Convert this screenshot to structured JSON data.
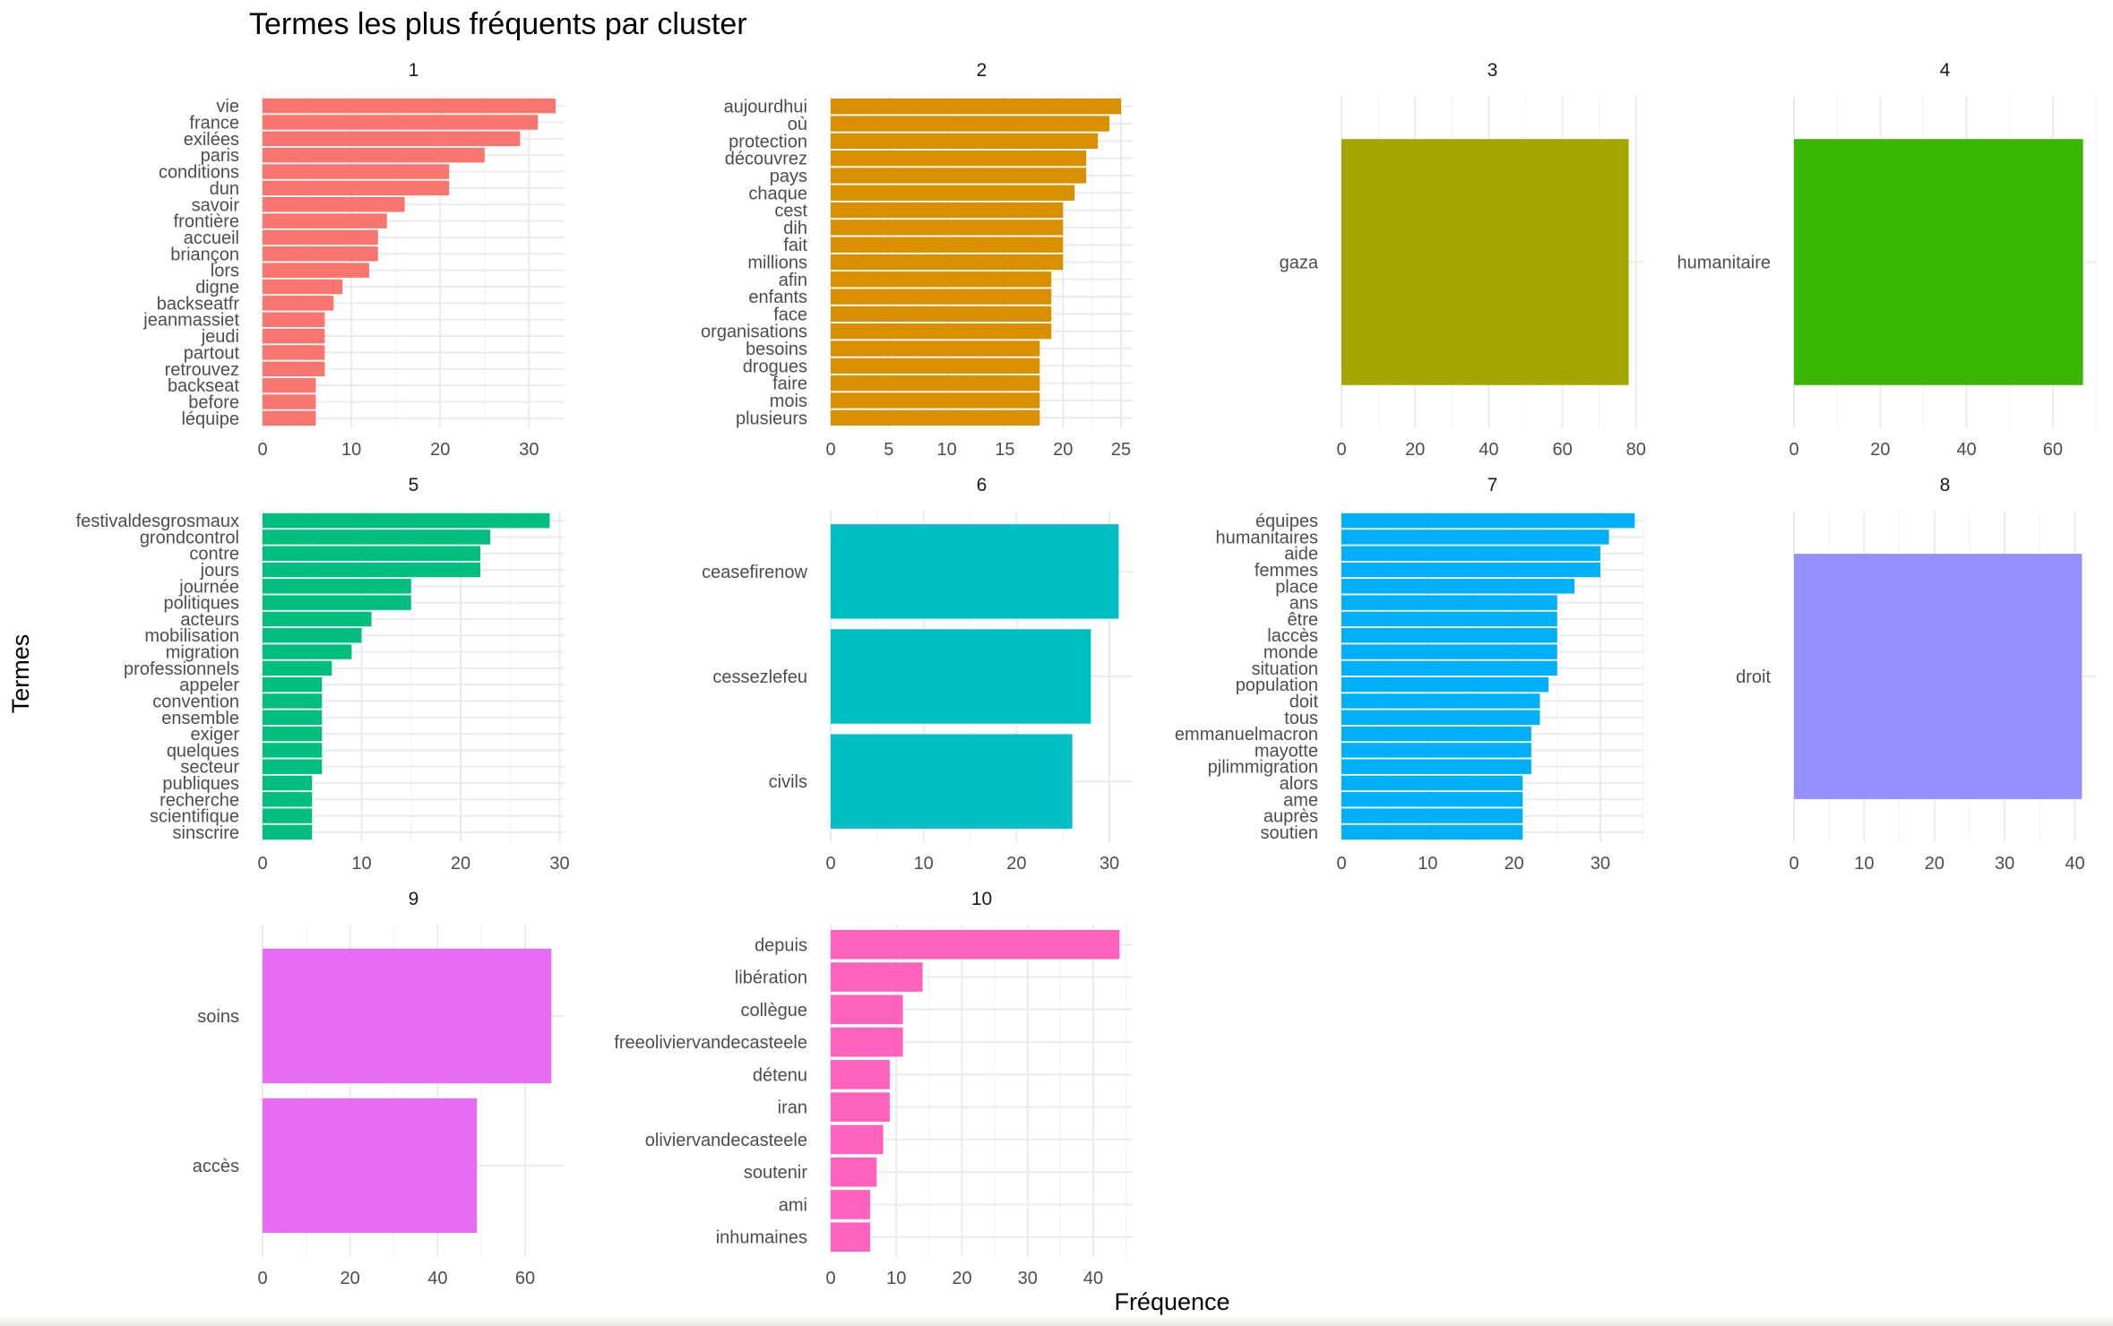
{
  "title": "Termes les plus fréquents par cluster",
  "xlabel": "Fréquence",
  "ylabel": "Termes",
  "chart_data": {
    "type": "bar",
    "orientation": "horizontal",
    "facets": [
      {
        "name": "1",
        "color": "#F8766D",
        "xlim": [
          0,
          34
        ],
        "xticks": [
          0,
          10,
          20,
          30
        ],
        "categories": [
          "léquipe",
          "before",
          "backseat",
          "retrouvez",
          "partout",
          "jeudi",
          "jeanmassiet",
          "backseatfr",
          "digne",
          "lors",
          "briançon",
          "accueil",
          "frontière",
          "savoir",
          "dun",
          "conditions",
          "paris",
          "exilées",
          "france",
          "vie"
        ],
        "values": [
          6,
          6,
          6,
          7,
          7,
          7,
          7,
          8,
          9,
          12,
          13,
          13,
          14,
          16,
          21,
          21,
          25,
          29,
          31,
          33
        ]
      },
      {
        "name": "2",
        "color": "#D89000",
        "xlim": [
          0,
          26
        ],
        "xticks": [
          0,
          5,
          10,
          15,
          20,
          25
        ],
        "categories": [
          "plusieurs",
          "mois",
          "faire",
          "drogues",
          "besoins",
          "organisations",
          "face",
          "enfants",
          "afin",
          "millions",
          "fait",
          "dih",
          "cest",
          "chaque",
          "pays",
          "découvrez",
          "protection",
          "où",
          "aujourdhui"
        ],
        "values": [
          18,
          18,
          18,
          18,
          18,
          19,
          19,
          19,
          19,
          20,
          20,
          20,
          20,
          21,
          22,
          22,
          23,
          24,
          25
        ]
      },
      {
        "name": "3",
        "color": "#A3A500",
        "xlim": [
          0,
          82
        ],
        "xticks": [
          0,
          20,
          40,
          60,
          80
        ],
        "categories": [
          "gaza"
        ],
        "values": [
          78
        ]
      },
      {
        "name": "4",
        "color": "#39B600",
        "xlim": [
          0,
          70
        ],
        "xticks": [
          0,
          20,
          40,
          60
        ],
        "categories": [
          "humanitaire"
        ],
        "values": [
          67
        ]
      },
      {
        "name": "5",
        "color": "#00BF7D",
        "xlim": [
          0,
          30.5
        ],
        "xticks": [
          0,
          10,
          20,
          30
        ],
        "categories": [
          "sinscrire",
          "scientifique",
          "recherche",
          "publiques",
          "secteur",
          "quelques",
          "exiger",
          "ensemble",
          "convention",
          "appeler",
          "professionnels",
          "migration",
          "mobilisation",
          "acteurs",
          "politiques",
          "journée",
          "jours",
          "contre",
          "grondcontrol",
          "festivaldesgrosmaux"
        ],
        "values": [
          5,
          5,
          5,
          5,
          6,
          6,
          6,
          6,
          6,
          6,
          7,
          9,
          10,
          11,
          15,
          15,
          22,
          22,
          23,
          29
        ]
      },
      {
        "name": "6",
        "color": "#00BFC4",
        "xlim": [
          0,
          32.5
        ],
        "xticks": [
          0,
          10,
          20,
          30
        ],
        "categories": [
          "civils",
          "cessezlefeu",
          "ceasefirenow"
        ],
        "values": [
          26,
          28,
          31
        ]
      },
      {
        "name": "7",
        "color": "#00B0F6",
        "xlim": [
          0,
          35
        ],
        "xticks": [
          0,
          10,
          20,
          30
        ],
        "categories": [
          "soutien",
          "auprès",
          "ame",
          "alors",
          "pjlimmigration",
          "mayotte",
          "emmanuelmacron",
          "tous",
          "doit",
          "population",
          "situation",
          "monde",
          "laccès",
          "être",
          "ans",
          "place",
          "femmes",
          "aide",
          "humanitaires",
          "équipes"
        ],
        "values": [
          21,
          21,
          21,
          21,
          22,
          22,
          22,
          23,
          23,
          24,
          25,
          25,
          25,
          25,
          25,
          27,
          30,
          30,
          31,
          34
        ]
      },
      {
        "name": "8",
        "color": "#9590FF",
        "xlim": [
          0,
          43
        ],
        "xticks": [
          0,
          10,
          20,
          30,
          40
        ],
        "categories": [
          "droit"
        ],
        "values": [
          41
        ]
      },
      {
        "name": "9",
        "color": "#E76BF3",
        "xlim": [
          0,
          69
        ],
        "xticks": [
          0,
          20,
          40,
          60
        ],
        "categories": [
          "accès",
          "soins"
        ],
        "values": [
          49,
          66
        ]
      },
      {
        "name": "10",
        "color": "#FF62BC",
        "xlim": [
          0,
          46
        ],
        "xticks": [
          0,
          10,
          20,
          30,
          40
        ],
        "categories": [
          "inhumaines",
          "ami",
          "soutenir",
          "oliviervandecasteele",
          "iran",
          "détenu",
          "freeoliviervandecasteele",
          "collègue",
          "libération",
          "depuis"
        ],
        "values": [
          6,
          6,
          7,
          8,
          9,
          9,
          11,
          11,
          14,
          44
        ]
      }
    ]
  }
}
